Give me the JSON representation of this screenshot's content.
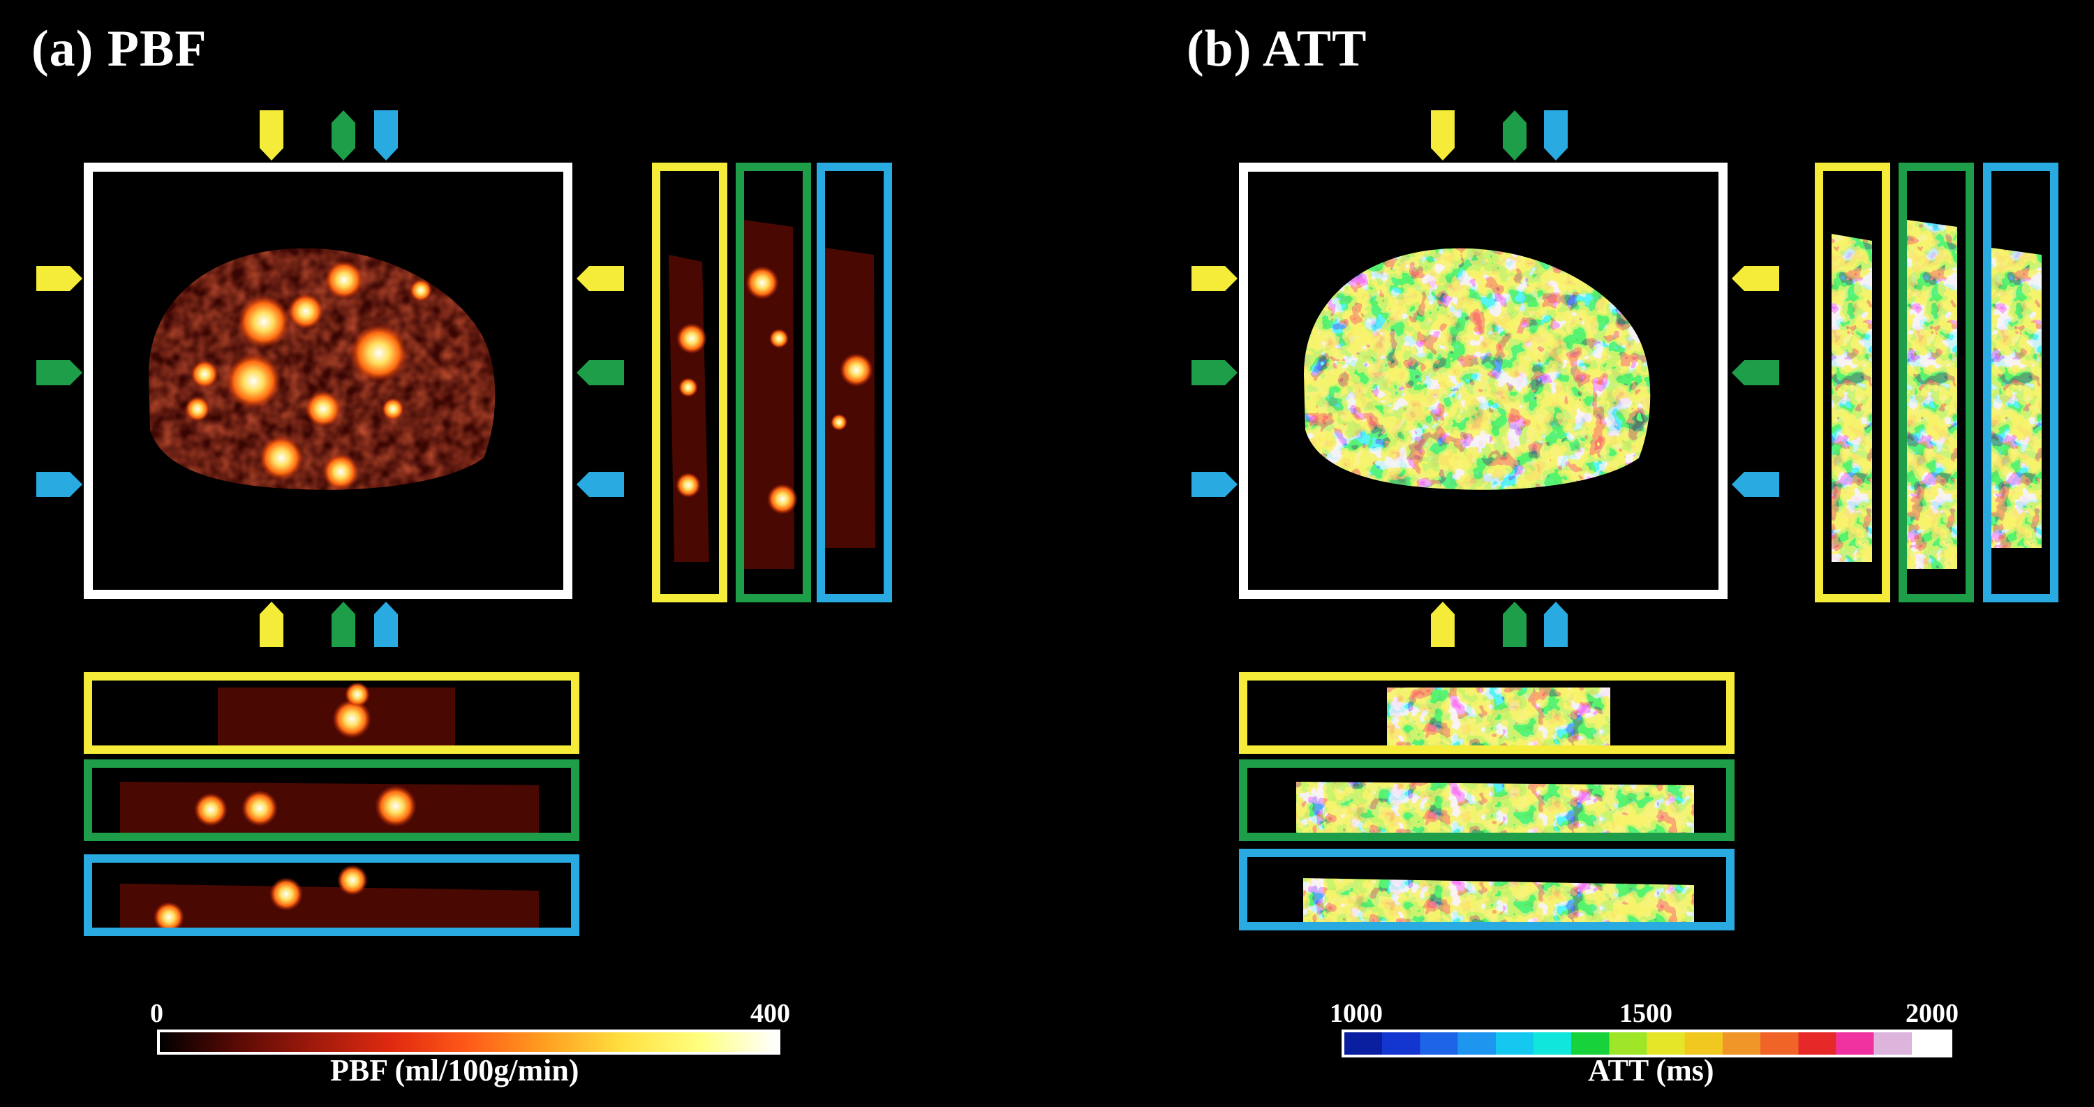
{
  "panels": {
    "a": {
      "title": "(a) PBF",
      "colorbar": {
        "min": "0",
        "max": "400",
        "label": "PBF (ml/100g/min)",
        "colormap": [
          "#000000",
          "#5a0a05",
          "#a01a0c",
          "#e02a10",
          "#ff5a18",
          "#ffa020",
          "#ffe040",
          "#ffff80",
          "#ffffff"
        ]
      }
    },
    "b": {
      "title": "(b) ATT",
      "colorbar": {
        "min": "1000",
        "mid": "1500",
        "max": "2000",
        "label": "ATT (ms)",
        "colormap": [
          "#0a1ea0",
          "#1436d0",
          "#1e64e6",
          "#1e96f0",
          "#14c8f0",
          "#10e6dc",
          "#18d23c",
          "#a0e628",
          "#e6e628",
          "#f0c820",
          "#f09628",
          "#f06428",
          "#e62828",
          "#f032a0",
          "#dcb4dc",
          "#ffffff"
        ]
      }
    }
  },
  "colors": {
    "yellow": "#f5ec3a",
    "green": "#1e9e48",
    "blue": "#29abe2",
    "frame": "#ffffff"
  }
}
